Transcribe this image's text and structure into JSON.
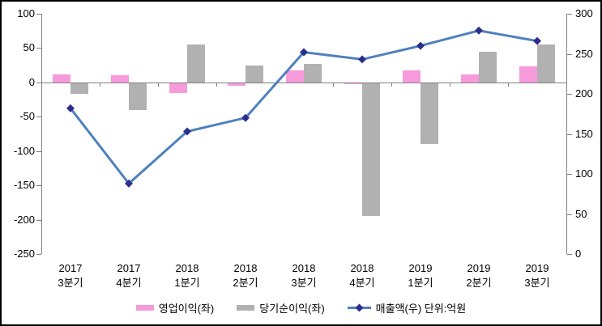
{
  "chart_data": {
    "type": "bar+line combo",
    "categories": [
      {
        "year": "2017",
        "quarter": "3분기"
      },
      {
        "year": "2017",
        "quarter": "4분기"
      },
      {
        "year": "2018",
        "quarter": "1분기"
      },
      {
        "year": "2018",
        "quarter": "2분기"
      },
      {
        "year": "2018",
        "quarter": "3분기"
      },
      {
        "year": "2018",
        "quarter": "4분기"
      },
      {
        "year": "2019",
        "quarter": "1분기"
      },
      {
        "year": "2019",
        "quarter": "2분기"
      },
      {
        "year": "2019",
        "quarter": "3분기"
      }
    ],
    "series": [
      {
        "name": "영업이익(좌)",
        "type": "bar",
        "axis": "left",
        "color": "#F69ADC",
        "values": [
          12,
          11,
          -15,
          -5,
          17,
          -3,
          18,
          12,
          23
        ]
      },
      {
        "name": "당기순이익(좌)",
        "type": "bar",
        "axis": "left",
        "color": "#B1B1B1",
        "values": [
          -17,
          -40,
          55,
          25,
          27,
          -195,
          -90,
          45,
          55
        ]
      },
      {
        "name": "매출액(우) 단위:억원",
        "type": "line",
        "axis": "right",
        "color": "#4F81BD",
        "marker": "diamond",
        "marker_color": "#2D2D8F",
        "values": [
          182,
          88,
          153,
          170,
          252,
          243,
          260,
          279,
          266
        ]
      }
    ],
    "left_axis": {
      "min": -250,
      "max": 100,
      "ticks": [
        100,
        50,
        0,
        -50,
        -100,
        -150,
        -200,
        -250
      ]
    },
    "right_axis": {
      "min": 0,
      "max": 300,
      "ticks": [
        300,
        250,
        200,
        150,
        100,
        50,
        0
      ]
    },
    "grid": false,
    "legend_position": "bottom",
    "title": ""
  },
  "colors": {
    "axis_line": "#808080",
    "text": "#000000",
    "frame_border": "#000000",
    "background": "#FFFFFF"
  }
}
